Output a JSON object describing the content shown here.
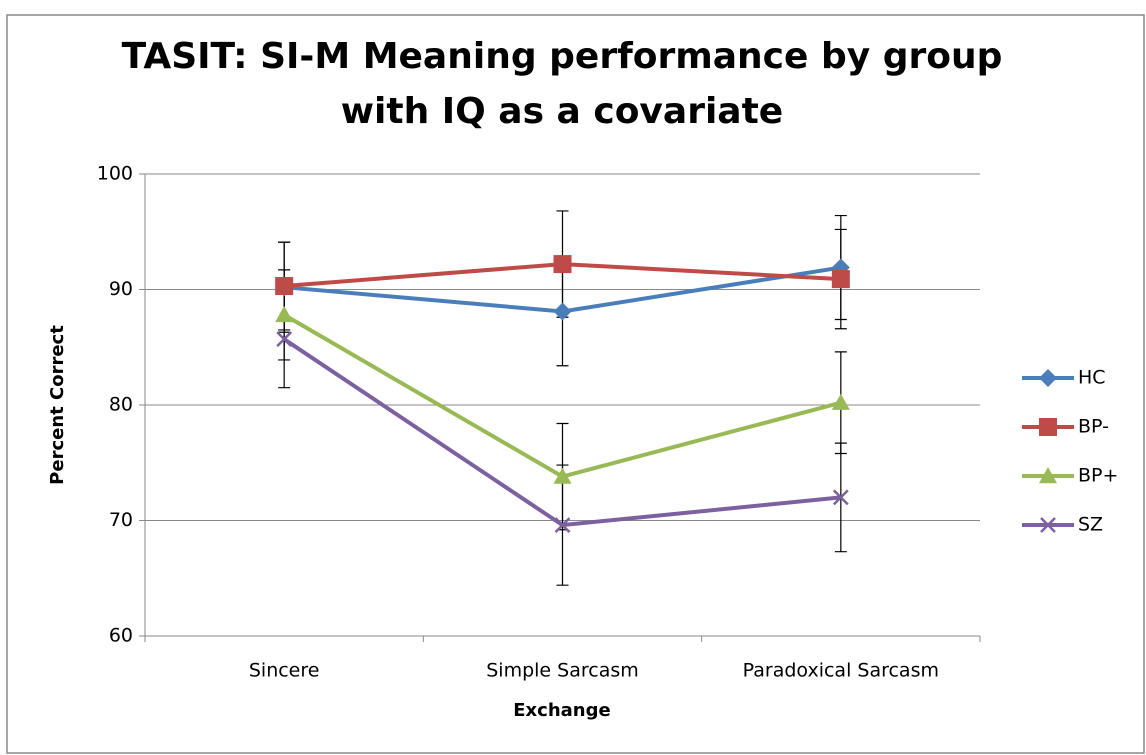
{
  "chart_data": {
    "type": "line",
    "title": [
      "TASIT: SI-M Meaning performance by group",
      "with IQ as a covariate"
    ],
    "x_label": "Exchange",
    "y_label": "Percent Correct",
    "categories": [
      "Sincere",
      "Simple Sarcasm",
      "Paradoxical Sarcasm"
    ],
    "series": [
      {
        "name": "HC",
        "color": "#4a7ebb",
        "marker": "diamond",
        "values": [
          90.2,
          88.1,
          91.9
        ],
        "errors": [
          3.9,
          4.7,
          4.5
        ]
      },
      {
        "name": "BP-",
        "color": "#be4b48",
        "marker": "square",
        "values": [
          90.3,
          92.2,
          90.9
        ],
        "errors": [
          3.8,
          4.6,
          4.3
        ]
      },
      {
        "name": "BP+",
        "color": "#98b954",
        "marker": "triangle",
        "values": [
          87.8,
          73.8,
          80.2
        ],
        "errors": [
          3.9,
          4.6,
          4.4
        ]
      },
      {
        "name": "SZ",
        "color": "#7d60a0",
        "marker": "x",
        "values": [
          85.7,
          69.6,
          72.0
        ],
        "errors": [
          4.2,
          5.2,
          4.7
        ]
      }
    ],
    "ylim": [
      60,
      100
    ],
    "yticks": [
      60,
      70,
      80,
      90,
      100
    ],
    "grid": true,
    "legend": "right"
  }
}
